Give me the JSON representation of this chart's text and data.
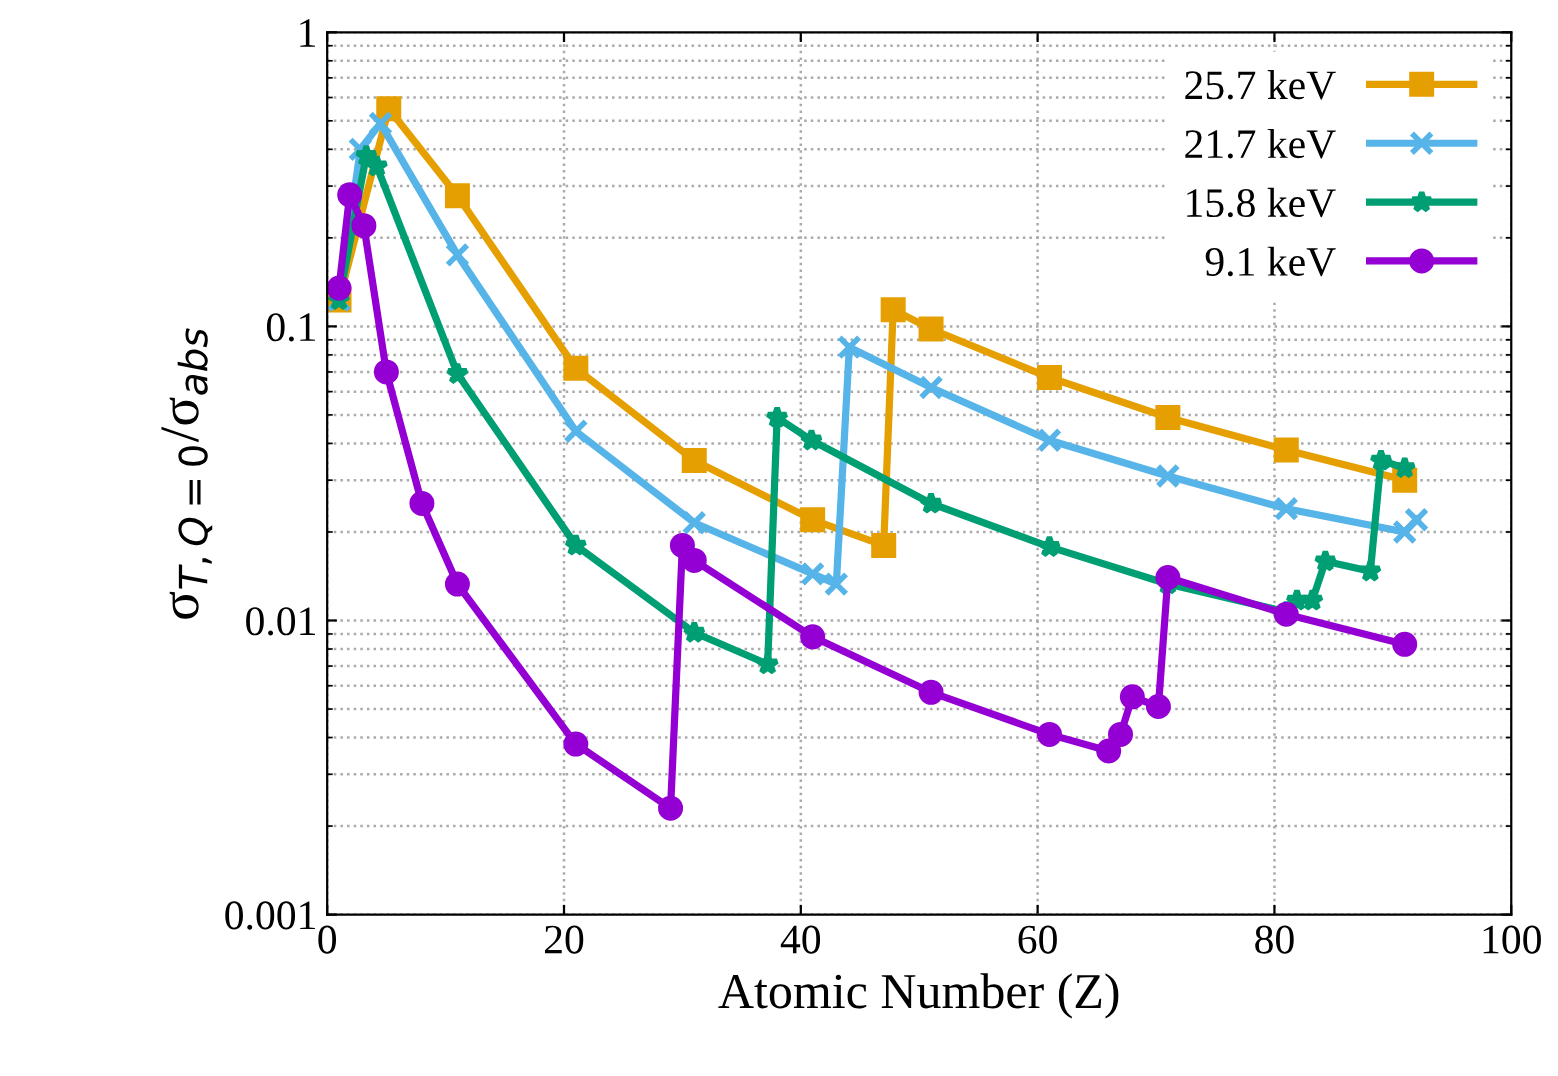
{
  "chart_data": {
    "type": "line",
    "xlabel": "Atomic Number (Z)",
    "ylabel": "σ$_{T,Q=0}$/σ$_{abs}$",
    "log": "y",
    "xlim": [
      0,
      100
    ],
    "xticks": [
      0,
      20,
      40,
      60,
      80,
      100
    ],
    "ylim": [
      0.001,
      1
    ],
    "yticks": [
      0.001,
      0.01,
      0.1,
      1
    ],
    "grid": true,
    "legend": "top right",
    "line_style": "solid",
    "series": [
      {
        "name": "25.7 keV",
        "color": "#e69f00",
        "marker": "square",
        "x": [
          1,
          5.2,
          11,
          21,
          31,
          41,
          47,
          47.8,
          51,
          61,
          71,
          81,
          91
        ],
        "values": [
          0.123,
          0.55,
          0.278,
          0.072,
          0.035,
          0.022,
          0.018,
          0.114,
          0.098,
          0.067,
          0.049,
          0.038,
          0.03
        ]
      },
      {
        "name": "21.7 keV",
        "color": "#56b4e9",
        "marker": "cross",
        "x": [
          1,
          2.8,
          4.5,
          11,
          21,
          31,
          41,
          43,
          44.1,
          51,
          61,
          71,
          81,
          91,
          92
        ],
        "values": [
          0.123,
          0.4,
          0.49,
          0.175,
          0.044,
          0.0215,
          0.0144,
          0.0133,
          0.085,
          0.062,
          0.041,
          0.031,
          0.024,
          0.02,
          0.022
        ]
      },
      {
        "name": "15.8 keV",
        "color": "#009e73",
        "marker": "star",
        "x": [
          1,
          3.3,
          4.2,
          11,
          21,
          31,
          37.2,
          38,
          40.9,
          51,
          61,
          71,
          81,
          81.9,
          83.2,
          84.3,
          88.1,
          89,
          91
        ],
        "values": [
          0.123,
          0.38,
          0.35,
          0.069,
          0.018,
          0.0091,
          0.0071,
          0.049,
          0.041,
          0.025,
          0.0178,
          0.0133,
          0.0107,
          0.0117,
          0.0117,
          0.0159,
          0.0147,
          0.035,
          0.033
        ]
      },
      {
        "name": "9.1 keV",
        "color": "#9400d3",
        "marker": "circle",
        "x": [
          1,
          1.9,
          3.1,
          5,
          8,
          11,
          21,
          29,
          30,
          31,
          41,
          51,
          61,
          66,
          67,
          68,
          70.2,
          71,
          81,
          91
        ],
        "values": [
          0.135,
          0.28,
          0.22,
          0.07,
          0.025,
          0.0133,
          0.0038,
          0.0023,
          0.018,
          0.016,
          0.0088,
          0.0057,
          0.0041,
          0.0036,
          0.0041,
          0.0055,
          0.0051,
          0.014,
          0.0105,
          0.0083
        ]
      }
    ]
  }
}
